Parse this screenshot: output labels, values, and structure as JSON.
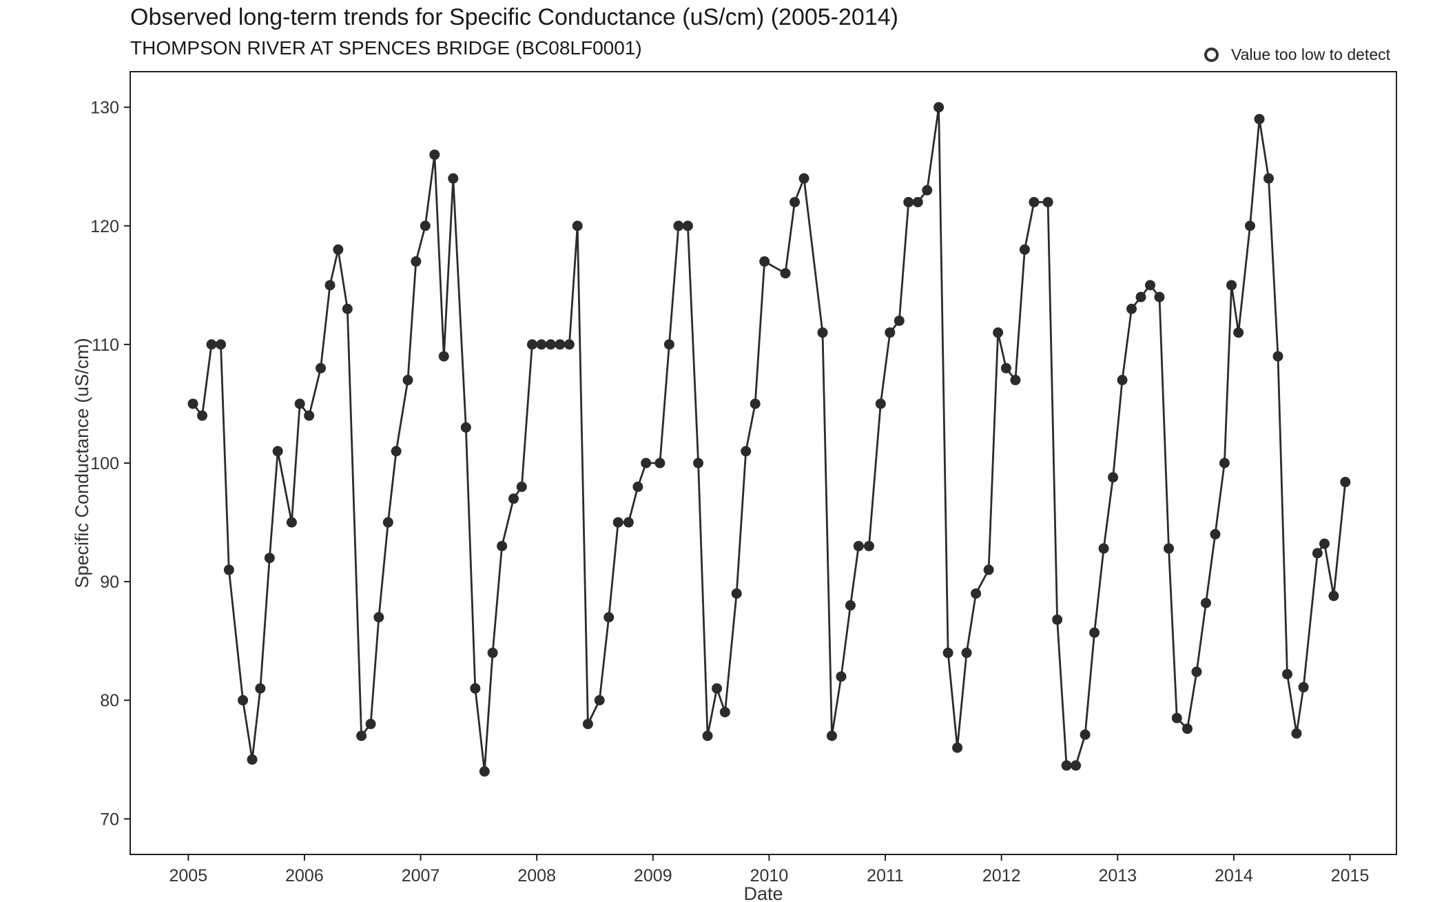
{
  "chart_data": {
    "type": "line",
    "title": "Observed long-term trends for Specific Conductance (uS/cm) (2005-2014)",
    "subtitle": "THOMPSON RIVER AT SPENCES BRIDGE (BC08LF0001)",
    "xlabel": "Date",
    "ylabel": "Specific Conductance (uS/cm)",
    "xlim": [
      2004.5,
      2015.4
    ],
    "ylim": [
      67,
      133
    ],
    "x_ticks": [
      2005,
      2006,
      2007,
      2008,
      2009,
      2010,
      2011,
      2012,
      2013,
      2014,
      2015
    ],
    "y_ticks": [
      70,
      80,
      90,
      100,
      110,
      120,
      130
    ],
    "grid": false,
    "legend": {
      "placement": "top-right",
      "entries": [
        {
          "label": "Value too low to detect",
          "marker": "open-circle"
        }
      ]
    },
    "colors": {
      "line": "#2b2b2b",
      "point": "#2b2b2b",
      "axis": "#222222"
    },
    "series": [
      {
        "x": [
          2005.04,
          2005.12,
          2005.2,
          2005.28,
          2005.35,
          2005.47,
          2005.55,
          2005.62,
          2005.7,
          2005.77,
          2005.89,
          2005.96,
          2006.04,
          2006.14,
          2006.22,
          2006.29,
          2006.37,
          2006.49,
          2006.57,
          2006.64,
          2006.72,
          2006.79,
          2006.89,
          2006.96,
          2007.04,
          2007.12,
          2007.2,
          2007.28,
          2007.39,
          2007.47,
          2007.55,
          2007.62,
          2007.7,
          2007.8,
          2007.87,
          2007.96,
          2008.04,
          2008.12,
          2008.2,
          2008.28,
          2008.35,
          2008.44,
          2008.54,
          2008.62,
          2008.7,
          2008.79,
          2008.87,
          2008.94,
          2009.06,
          2009.14,
          2009.22,
          2009.3,
          2009.39,
          2009.47,
          2009.55,
          2009.62,
          2009.72,
          2009.8,
          2009.88,
          2009.96,
          2010.14,
          2010.22,
          2010.3,
          2010.46,
          2010.54,
          2010.62,
          2010.7,
          2010.77,
          2010.86,
          2010.96,
          2011.04,
          2011.12,
          2011.2,
          2011.28,
          2011.36,
          2011.46,
          2011.54,
          2011.62,
          2011.7,
          2011.78,
          2011.89,
          2011.97,
          2012.04,
          2012.12,
          2012.2,
          2012.28,
          2012.4,
          2012.48,
          2012.56,
          2012.64,
          2012.72,
          2012.8,
          2012.88,
          2012.96,
          2013.04,
          2013.12,
          2013.2,
          2013.28,
          2013.36,
          2013.44,
          2013.51,
          2013.6,
          2013.68,
          2013.76,
          2013.84,
          2013.92,
          2013.98,
          2014.04,
          2014.14,
          2014.22,
          2014.3,
          2014.38,
          2014.46,
          2014.54,
          2014.6,
          2014.72,
          2014.78,
          2014.86,
          2014.96
        ],
        "y": [
          105,
          104,
          110,
          110,
          91,
          80,
          75,
          81,
          92,
          101,
          95,
          105,
          104,
          108,
          115,
          118,
          113,
          77,
          78,
          87,
          95,
          101,
          107,
          117,
          120,
          126,
          109,
          124,
          103,
          81,
          74,
          84,
          93,
          97,
          98,
          110,
          110,
          110,
          110,
          110,
          120,
          78,
          80,
          87,
          95,
          95,
          98,
          100,
          100,
          110,
          120,
          120,
          100,
          77,
          81,
          79,
          89,
          101,
          105,
          117,
          116,
          122,
          124,
          111,
          77,
          82,
          88,
          93,
          93,
          105,
          111,
          112,
          122,
          122,
          123,
          130,
          84,
          76,
          84,
          89,
          91,
          111,
          108,
          107,
          118,
          122,
          122,
          86.8,
          74.5,
          74.5,
          77.1,
          85.7,
          92.8,
          98.8,
          107,
          113,
          114,
          115,
          114,
          92.8,
          78.5,
          77.6,
          82.4,
          88.2,
          94,
          100,
          115,
          111,
          120,
          129,
          124,
          109,
          82.2,
          77.2,
          81.1,
          92.4,
          93.2,
          88.8,
          98.4
        ]
      }
    ]
  }
}
